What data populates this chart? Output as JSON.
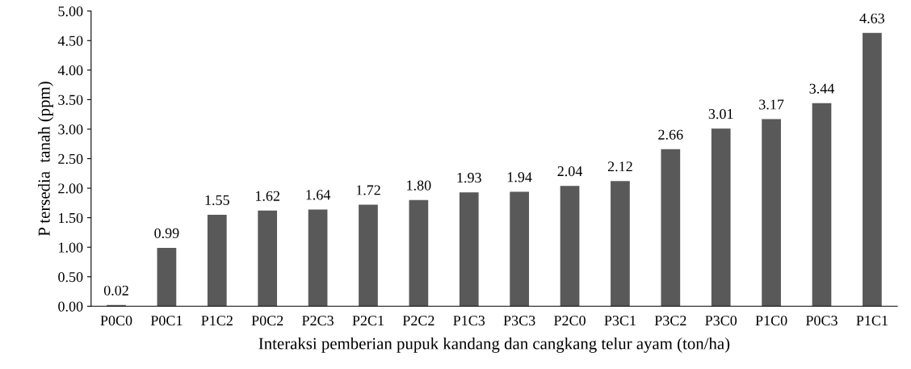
{
  "chart_data": {
    "type": "bar",
    "xlabel": "Interaksi pemberian pupuk kandang dan cangkang telur ayam (ton/ha)",
    "ylabel": "P tersedia  tanah (ppm)",
    "categories": [
      "P0C0",
      "P0C1",
      "P1C2",
      "P0C2",
      "P2C3",
      "P2C1",
      "P2C2",
      "P1C3",
      "P3C3",
      "P2C0",
      "P3C1",
      "P3C2",
      "P3C0",
      "P1C0",
      "P0C3",
      "P1C1"
    ],
    "values": [
      0.02,
      0.99,
      1.55,
      1.62,
      1.64,
      1.72,
      1.8,
      1.93,
      1.94,
      2.04,
      2.12,
      2.66,
      3.01,
      3.17,
      3.44,
      4.63
    ],
    "value_labels": [
      "0.02",
      "0.99",
      "1.55",
      "1.62",
      "1.64",
      "1.72",
      "1.80",
      "1.93",
      "1.94",
      "2.04",
      "2.12",
      "2.66",
      "3.01",
      "3.17",
      "3.44",
      "4.63"
    ],
    "color": "#595959",
    "ylim": [
      0,
      5
    ],
    "yticks": [
      {
        "value": 0,
        "label": "0.00"
      },
      {
        "value": 0.5,
        "label": "0.50"
      },
      {
        "value": 1,
        "label": "1.00"
      },
      {
        "value": 1.5,
        "label": "1.50"
      },
      {
        "value": 2,
        "label": "2.00"
      },
      {
        "value": 2.5,
        "label": "2.50"
      },
      {
        "value": 3,
        "label": "3.00"
      },
      {
        "value": 3.5,
        "label": "3.50"
      },
      {
        "value": 4,
        "label": "4.00"
      },
      {
        "value": 4.5,
        "label": "4.50"
      },
      {
        "value": 5,
        "label": "5.00"
      }
    ],
    "grid": false
  }
}
